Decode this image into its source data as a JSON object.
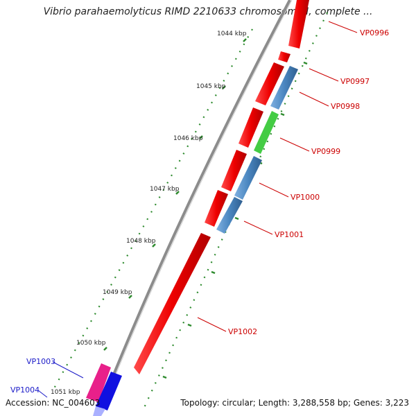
{
  "title": "Vibrio parahaemolyticus RIMD 2210633 chromosome I, complete ...",
  "accession_label": "Accession: NC_004603",
  "topology_label": "Topology: circular; Length: 3,288,558 bp; Genes: 3,223",
  "colors": {
    "backbone": "#8c8c8c",
    "tick": "#2e8b2e",
    "gene_red": "#ee0000",
    "gene_blue": "#4a86c0",
    "gene_green": "#44cc44",
    "gene_magenta": "#e8208a",
    "gene_darkblue": "#1010e0",
    "label_red": "#cc0000",
    "label_blue": "#1a1ac8"
  },
  "scale_labels": [
    "1044 kbp",
    "1045 kbp",
    "1046 kbp",
    "1047 kbp",
    "1048 kbp",
    "1049 kbp",
    "1050 kbp",
    "1051 kbp"
  ],
  "gene_labels": [
    {
      "name": "VP0996",
      "color": "red"
    },
    {
      "name": "VP0997",
      "color": "red"
    },
    {
      "name": "VP0998",
      "color": "red"
    },
    {
      "name": "VP0999",
      "color": "red"
    },
    {
      "name": "VP1000",
      "color": "red"
    },
    {
      "name": "VP1001",
      "color": "red"
    },
    {
      "name": "VP1002",
      "color": "red"
    },
    {
      "name": "VP1003",
      "color": "blue"
    },
    {
      "name": "VP1004",
      "color": "blue"
    }
  ]
}
